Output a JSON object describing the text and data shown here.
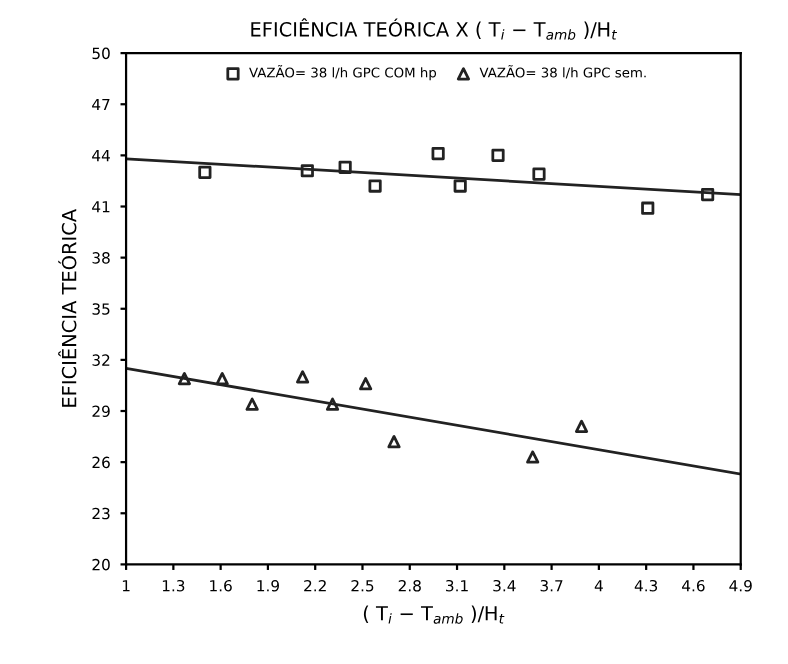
{
  "chart_data": {
    "type": "scatter",
    "title": "EFICIÊNCIA TEÓRICA X ( T$_{i}$ − T$_{amb}$ )/H$_{t}$",
    "xlabel": "( T$_{i}$ − T$_{amb}$ )/H$_{t}$",
    "ylabel": "EFICIÊNCIA TEÓRICA",
    "series": [
      {
        "name": "VAZÃO= 38 l/h GPC COM hp",
        "color": "#222222",
        "marker": "square",
        "x": [
          1.5,
          2.15,
          2.39,
          2.58,
          2.98,
          3.12,
          3.36,
          3.62,
          4.31,
          4.69
        ],
        "values": [
          43.0,
          43.1,
          43.3,
          42.2,
          44.1,
          42.2,
          44.0,
          42.9,
          40.9,
          41.7
        ]
      },
      {
        "name": "VAZÃO= 38 l/h GPC sem.",
        "color": "#222222",
        "marker": "triangle",
        "x": [
          1.37,
          1.61,
          1.8,
          2.12,
          2.31,
          2.52,
          2.7,
          3.58,
          3.89
        ],
        "values": [
          30.9,
          30.9,
          29.4,
          31.0,
          29.4,
          30.6,
          27.2,
          26.3,
          28.1
        ]
      },
      {
        "type": "line",
        "color": "#222222",
        "x": [
          1,
          4.9
        ],
        "values": [
          43.8,
          41.7
        ]
      },
      {
        "type": "line",
        "color": "#222222",
        "x": [
          1,
          4.9
        ],
        "values": [
          31.5,
          25.3
        ]
      }
    ],
    "xlim": [
      1,
      4.9
    ],
    "xticks": [
      1,
      1.3,
      1.6,
      1.9,
      2.2,
      2.5,
      2.8,
      3.1,
      3.4,
      3.7,
      4,
      4.3,
      4.6,
      4.9
    ],
    "ylim": [
      20,
      50
    ],
    "yticks": [
      20,
      23,
      26,
      29,
      32,
      35,
      38,
      41,
      44,
      47,
      50
    ],
    "legend": "top",
    "grid": false
  }
}
